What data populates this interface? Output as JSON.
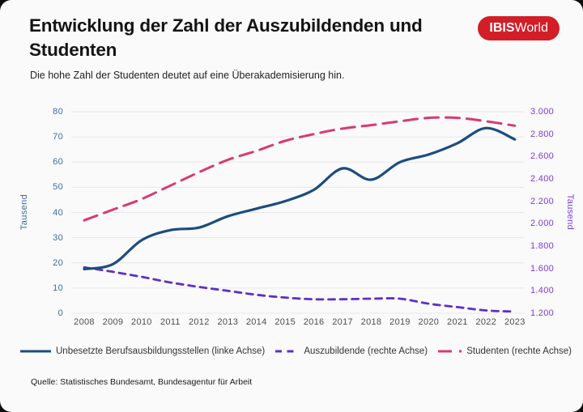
{
  "header": {
    "title": "Entwicklung der Zahl der Auszubildenden und Studenten",
    "subtitle": "Die hohe Zahl der Studenten deutet auf eine Überakademisierung hin."
  },
  "logo": {
    "text_bold": "IBIS",
    "text_regular": "World",
    "bg_color": "#d21e26",
    "text_color": "#ffffff"
  },
  "source": "Quelle: Statistisches Bundesamt, Bundesagentur für Arbeit",
  "legend": {
    "items": [
      {
        "label": "Unbesetzte Berufsausbildungsstellen (linke Achse)"
      },
      {
        "label": "Auszubildende (rechte Achse)"
      },
      {
        "label": "Studenten (rechte Achse)"
      }
    ]
  },
  "chart_data": {
    "type": "line",
    "title": "Entwicklung der Zahl der Auszubildenden und Studenten",
    "x": [
      2008,
      2009,
      2010,
      2011,
      2012,
      2013,
      2014,
      2015,
      2016,
      2017,
      2018,
      2019,
      2020,
      2021,
      2022,
      2023
    ],
    "grid": true,
    "grid_color": "#e8e8ea",
    "left_axis": {
      "label": "Tausend",
      "min": 0,
      "max": 80,
      "tick_values": [
        80,
        70,
        60,
        50,
        40,
        30,
        20,
        10,
        0
      ],
      "tick_labels": [
        "80",
        "70",
        "60",
        "50",
        "40",
        "30",
        "20",
        "10",
        "0"
      ],
      "color": "#3d6ba3"
    },
    "right_axis": {
      "label": "Tausend",
      "min": 1200,
      "max": 3000,
      "tick_values": [
        3000,
        2800,
        2600,
        2400,
        2200,
        2000,
        1800,
        1600,
        1400,
        1200
      ],
      "tick_labels": [
        "3.000",
        "2.800",
        "2.600",
        "2.400",
        "2.200",
        "2.000",
        "1.800",
        "1.600",
        "1.400",
        "1.200"
      ],
      "color": "#7a3be0"
    },
    "series": [
      {
        "name": "Unbesetzte Berufsausbildungsstellen (linke Achse)",
        "axis": "left",
        "color": "#1b4d7f",
        "dash": null,
        "width": 3.2,
        "values": [
          17.5,
          19.5,
          29,
          33,
          34,
          38.5,
          41.5,
          44.5,
          49,
          57.5,
          53,
          60,
          63,
          67.5,
          73.5,
          69
        ]
      },
      {
        "name": "Auszubildende (rechte Achse)",
        "axis": "right",
        "color": "#5e30c8",
        "dash": "8 6.5",
        "width": 2.8,
        "values": [
          1610,
          1570,
          1525,
          1475,
          1435,
          1400,
          1365,
          1340,
          1325,
          1325,
          1330,
          1330,
          1285,
          1255,
          1225,
          1215
        ]
      },
      {
        "name": "Studenten (rechte Achse)",
        "axis": "right",
        "color": "#d93a6e",
        "dash": "17 9",
        "width": 3,
        "values": [
          2030,
          2125,
          2220,
          2340,
          2460,
          2570,
          2650,
          2740,
          2800,
          2850,
          2880,
          2915,
          2945,
          2945,
          2915,
          2875
        ]
      }
    ],
    "legend_position": "bottom"
  }
}
